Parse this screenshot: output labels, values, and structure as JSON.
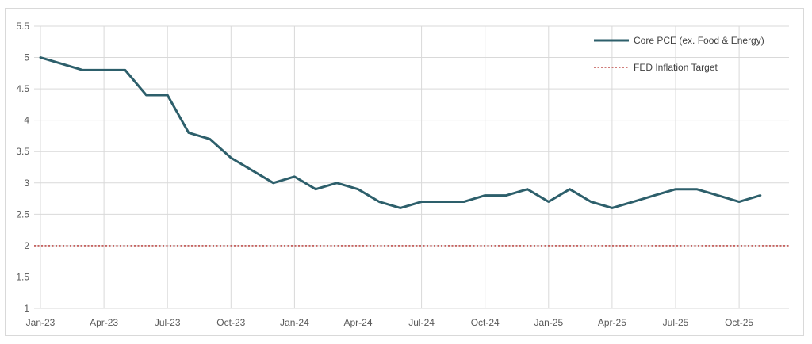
{
  "chart_data": {
    "type": "line",
    "title": "",
    "xlabel": "",
    "ylabel": "",
    "ylim": [
      1,
      5.5
    ],
    "ytick_values": [
      1,
      1.5,
      2,
      2.5,
      3,
      3.5,
      4,
      4.5,
      5,
      5.5
    ],
    "yticks": [
      "1",
      "1.5",
      "2",
      "2.5",
      "3",
      "3.5",
      "4",
      "4.5",
      "5",
      "5.5"
    ],
    "xticks": [
      "Jan-23",
      "Apr-23",
      "Jul-23",
      "Oct-23",
      "Jan-24",
      "Apr-24",
      "Jul-24",
      "Oct-24",
      "Jan-25",
      "Apr-25",
      "Jul-25",
      "Oct-25"
    ],
    "x": [
      "Jan-23",
      "Feb-23",
      "Mar-23",
      "Apr-23",
      "May-23",
      "Jun-23",
      "Jul-23",
      "Aug-23",
      "Sep-23",
      "Oct-23",
      "Nov-23",
      "Dec-23",
      "Jan-24",
      "Feb-24",
      "Mar-24",
      "Apr-24",
      "May-24",
      "Jun-24",
      "Jul-24",
      "Aug-24",
      "Sep-24",
      "Oct-24",
      "Nov-24",
      "Dec-24",
      "Jan-25",
      "Feb-25",
      "Mar-25",
      "Apr-25",
      "May-25",
      "Jun-25",
      "Jul-25",
      "Aug-25",
      "Sep-25",
      "Oct-25",
      "Nov-25"
    ],
    "grid": "vertical and horizontal",
    "legend_position": "top-right",
    "series": [
      {
        "name": "Core PCE (ex. Food & Energy)",
        "color": "#2d5f6b",
        "style": "solid",
        "values": [
          5.0,
          4.9,
          4.8,
          4.8,
          4.8,
          4.4,
          4.4,
          3.8,
          3.7,
          3.4,
          3.2,
          3.0,
          3.1,
          2.9,
          3.0,
          2.9,
          2.7,
          2.6,
          2.7,
          2.7,
          2.7,
          2.8,
          2.8,
          2.9,
          2.7,
          2.9,
          2.7,
          2.6,
          2.7,
          2.8,
          2.9,
          2.9,
          2.8,
          2.7,
          2.8
        ]
      },
      {
        "name": "FED Inflation Target",
        "color": "#c0504d",
        "style": "dotted",
        "constant": 2.0
      }
    ]
  },
  "colors": {
    "grid": "#d9d9d9",
    "axis_text": "#595959",
    "frame": "#d9d9d9"
  }
}
